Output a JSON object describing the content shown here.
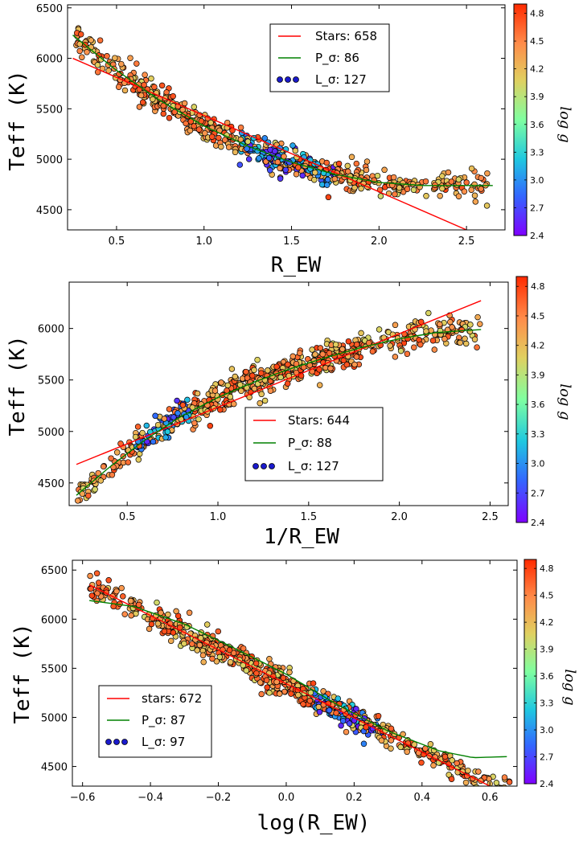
{
  "colors": {
    "stars_line": "#ff0000",
    "p_sigma_line": "#008000",
    "colormap": [
      "#7f00ff",
      "#3366ff",
      "#1fc8e0",
      "#7fffa0",
      "#e0d060",
      "#ff8c4a",
      "#ff2a00"
    ]
  },
  "chart_data": [
    {
      "type": "scatter",
      "xlabel": "R_EW",
      "ylabel": "Teff (K)",
      "colorbar_label": "log g",
      "xlim": [
        0.22,
        2.72
      ],
      "ylim": [
        4300,
        6530
      ],
      "xticks": [
        "0.5",
        "1.0",
        "1.5",
        "2.0",
        "2.5"
      ],
      "yticks": [
        "4500",
        "5000",
        "5500",
        "6000",
        "6500"
      ],
      "clim": [
        2.4,
        4.9
      ],
      "cticks": [
        "2.4",
        "2.7",
        "3.0",
        "3.3",
        "3.6",
        "3.9",
        "4.2",
        "4.5",
        "4.8"
      ],
      "legend": {
        "position": "upper-center",
        "entries": [
          "Stars: 658",
          "P_σ: 86",
          "L_σ: 127"
        ]
      },
      "series": [
        {
          "name": "Stars: 658",
          "kind": "line",
          "x": [
            0.25,
            2.5
          ],
          "y": [
            6000,
            4300
          ]
        },
        {
          "name": "P_σ: 86",
          "kind": "curve",
          "x": [
            0.25,
            0.5,
            0.75,
            1.0,
            1.25,
            1.5,
            1.75,
            2.0,
            2.25,
            2.5,
            2.65
          ],
          "y": [
            6230,
            5880,
            5580,
            5330,
            5130,
            4970,
            4850,
            4770,
            4740,
            4740,
            4740
          ]
        }
      ],
      "points_model": {
        "curve": "P_σ",
        "x_range": [
          0.27,
          2.62
        ],
        "count": 658,
        "scatter_sd_K": 70,
        "low_gravity_cluster": {
          "x_range": [
            1.2,
            1.75
          ],
          "logg_range": [
            2.5,
            3.3
          ]
        },
        "high_gravity_logg": [
          4.0,
          4.8
        ]
      }
    },
    {
      "type": "scatter",
      "xlabel": "1/R_EW",
      "ylabel": "Teff (K)",
      "colorbar_label": "log g",
      "xlim": [
        0.18,
        2.6
      ],
      "ylim": [
        4280,
        6450
      ],
      "xticks": [
        "0.5",
        "1.0",
        "1.5",
        "2.0",
        "2.5"
      ],
      "yticks": [
        "4500",
        "5000",
        "5500",
        "6000"
      ],
      "clim": [
        2.4,
        4.9
      ],
      "cticks": [
        "2.4",
        "2.7",
        "3.0",
        "3.3",
        "3.6",
        "3.9",
        "4.2",
        "4.5",
        "4.8"
      ],
      "legend": {
        "position": "lower-center",
        "entries": [
          "Stars: 644",
          "P_σ: 88",
          "L_σ: 127"
        ]
      },
      "series": [
        {
          "name": "Stars: 644",
          "kind": "line",
          "x": [
            0.22,
            2.45
          ],
          "y": [
            4680,
            6270
          ]
        },
        {
          "name": "P_σ: 88",
          "kind": "curve",
          "x": [
            0.22,
            0.4,
            0.6,
            0.8,
            1.0,
            1.2,
            1.4,
            1.6,
            1.8,
            2.0,
            2.2,
            2.45
          ],
          "y": [
            4380,
            4650,
            4920,
            5150,
            5330,
            5480,
            5610,
            5720,
            5820,
            5900,
            5960,
            5990
          ]
        }
      ],
      "points_model": {
        "curve": "P_σ",
        "x_range": [
          0.22,
          2.45
        ],
        "count": 644,
        "scatter_sd_K": 75,
        "low_gravity_cluster": {
          "x_range": [
            0.55,
            0.85
          ],
          "logg_range": [
            2.5,
            3.3
          ]
        },
        "high_gravity_logg": [
          4.0,
          4.8
        ]
      }
    },
    {
      "type": "scatter",
      "xlabel": "log(R_EW)",
      "ylabel": "Teff (K)",
      "colorbar_label": "log g",
      "xlim": [
        -0.63,
        0.68
      ],
      "ylim": [
        4300,
        6600
      ],
      "xticks": [
        "−0.6",
        "−0.4",
        "−0.2",
        "0.0",
        "0.2",
        "0.4",
        "0.6"
      ],
      "yticks": [
        "4500",
        "5000",
        "5500",
        "6000",
        "6500"
      ],
      "clim": [
        2.4,
        4.9
      ],
      "cticks": [
        "2.4",
        "2.7",
        "3.0",
        "3.3",
        "3.6",
        "3.9",
        "4.2",
        "4.5",
        "4.8"
      ],
      "legend": {
        "position": "lower-left",
        "entries": [
          "stars: 672",
          "P_σ: 87",
          "L_σ: 97"
        ]
      },
      "series": [
        {
          "name": "stars: 672",
          "kind": "line",
          "x": [
            -0.58,
            0.6
          ],
          "y": [
            6350,
            4300
          ]
        },
        {
          "name": "P_σ: 87",
          "kind": "curve",
          "x": [
            -0.58,
            -0.45,
            -0.3,
            -0.15,
            0.0,
            0.15,
            0.3,
            0.45,
            0.55,
            0.65
          ],
          "y": [
            6190,
            6130,
            5950,
            5700,
            5440,
            5130,
            4860,
            4660,
            4590,
            4600
          ]
        }
      ],
      "points_model": {
        "curve": "stars",
        "x_range": [
          -0.58,
          0.66
        ],
        "count": 672,
        "scatter_sd_K": 70,
        "low_gravity_cluster": {
          "x_range": [
            0.08,
            0.28
          ],
          "logg_range": [
            2.5,
            3.3
          ]
        },
        "high_gravity_logg": [
          4.0,
          4.8
        ]
      }
    }
  ]
}
